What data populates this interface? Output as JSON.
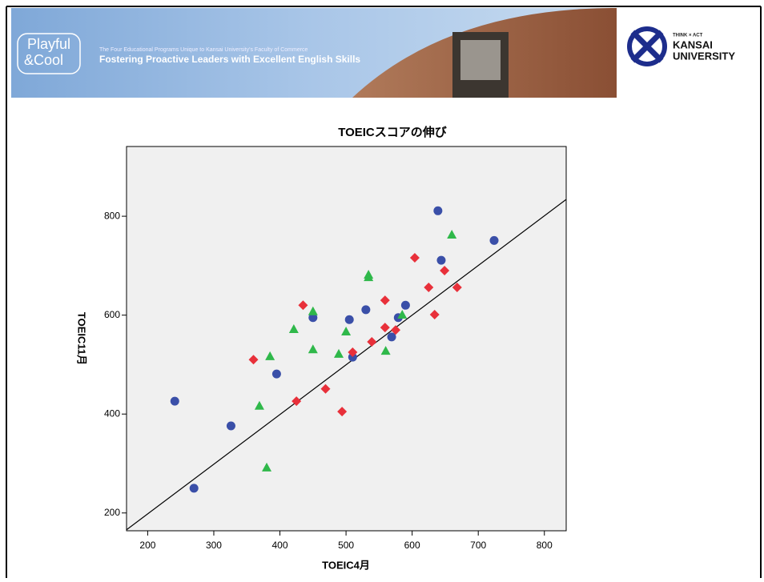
{
  "header": {
    "brand": [
      "Playful",
      "&Cool"
    ],
    "subtitle": "The Four Educational Programs Unique to Kansai University's Faculty of Commerce",
    "title": "Fostering Proactive Leaders with Excellent English Skills",
    "logo": [
      "THINK × ACT",
      "KANSAI",
      "UNIVERSITY"
    ]
  },
  "chart_data": {
    "type": "scatter",
    "title": "TOEICスコアの伸び",
    "x_label": "TOEIC4月",
    "y_label": "TOEIC11月",
    "xlim": [
      168,
      833
    ],
    "ylim": [
      164,
      941
    ],
    "xticks": [
      200,
      300,
      400,
      500,
      600,
      700,
      800
    ],
    "yticks": [
      200,
      400,
      600,
      800
    ],
    "series": [
      {
        "color": "#3a4fa8",
        "marker": "circle",
        "x": [
          241,
          270,
          326,
          395,
          450,
          505,
          510,
          530,
          569,
          579,
          590,
          639,
          644,
          724
        ],
        "values": [
          426,
          250,
          376,
          481,
          595,
          591,
          515,
          611,
          556,
          595,
          620,
          811,
          711,
          751
        ]
      },
      {
        "color": "#e8303a",
        "marker": "diamond",
        "x": [
          360,
          435,
          425,
          469,
          494,
          510,
          539,
          559,
          559,
          575,
          604,
          625,
          634,
          649,
          668
        ],
        "values": [
          510,
          620,
          426,
          451,
          405,
          525,
          546,
          630,
          575,
          570,
          716,
          656,
          601,
          690,
          656
        ]
      },
      {
        "color": "#2fb84a",
        "marker": "triangle",
        "x": [
          380,
          369,
          385,
          421,
          450,
          450,
          489,
          500,
          534,
          534,
          560,
          585,
          660
        ],
        "values": [
          292,
          417,
          517,
          572,
          608,
          531,
          522,
          567,
          682,
          677,
          528,
          601,
          763
        ]
      }
    ],
    "fit_line": {
      "x": [
        168,
        833
      ],
      "y": [
        166,
        834
      ]
    }
  }
}
